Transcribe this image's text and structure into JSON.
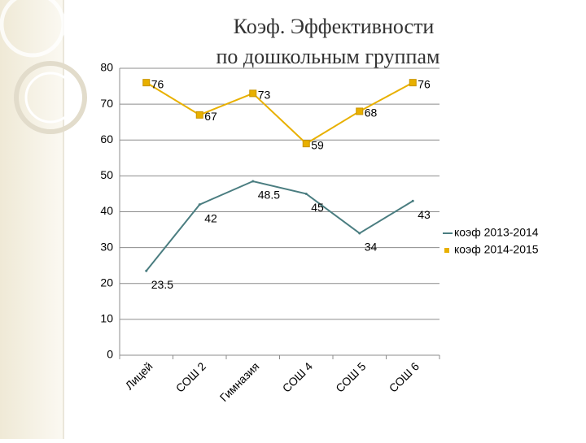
{
  "chart_data": {
    "type": "line",
    "title": "Коэф. Эффективности",
    "subtitle": "по дошкольным группам",
    "categories": [
      "Лицей",
      "СОШ 2",
      "Гимназия",
      "СОШ 4",
      "СОШ 5",
      "СОШ 6"
    ],
    "series": [
      {
        "name": "коэф 2013-2014",
        "color": "#4a7d80",
        "marker": false,
        "values": [
          23.5,
          42,
          48.5,
          45,
          34,
          43
        ]
      },
      {
        "name": "коэф 2014-2015",
        "color": "#e8b000",
        "marker": true,
        "values": [
          76,
          67,
          73,
          59,
          68,
          76
        ]
      }
    ],
    "ylim": [
      0,
      80
    ],
    "yticks": [
      0,
      10,
      20,
      30,
      40,
      50,
      60,
      70,
      80
    ],
    "grid": true,
    "legend": "right"
  }
}
